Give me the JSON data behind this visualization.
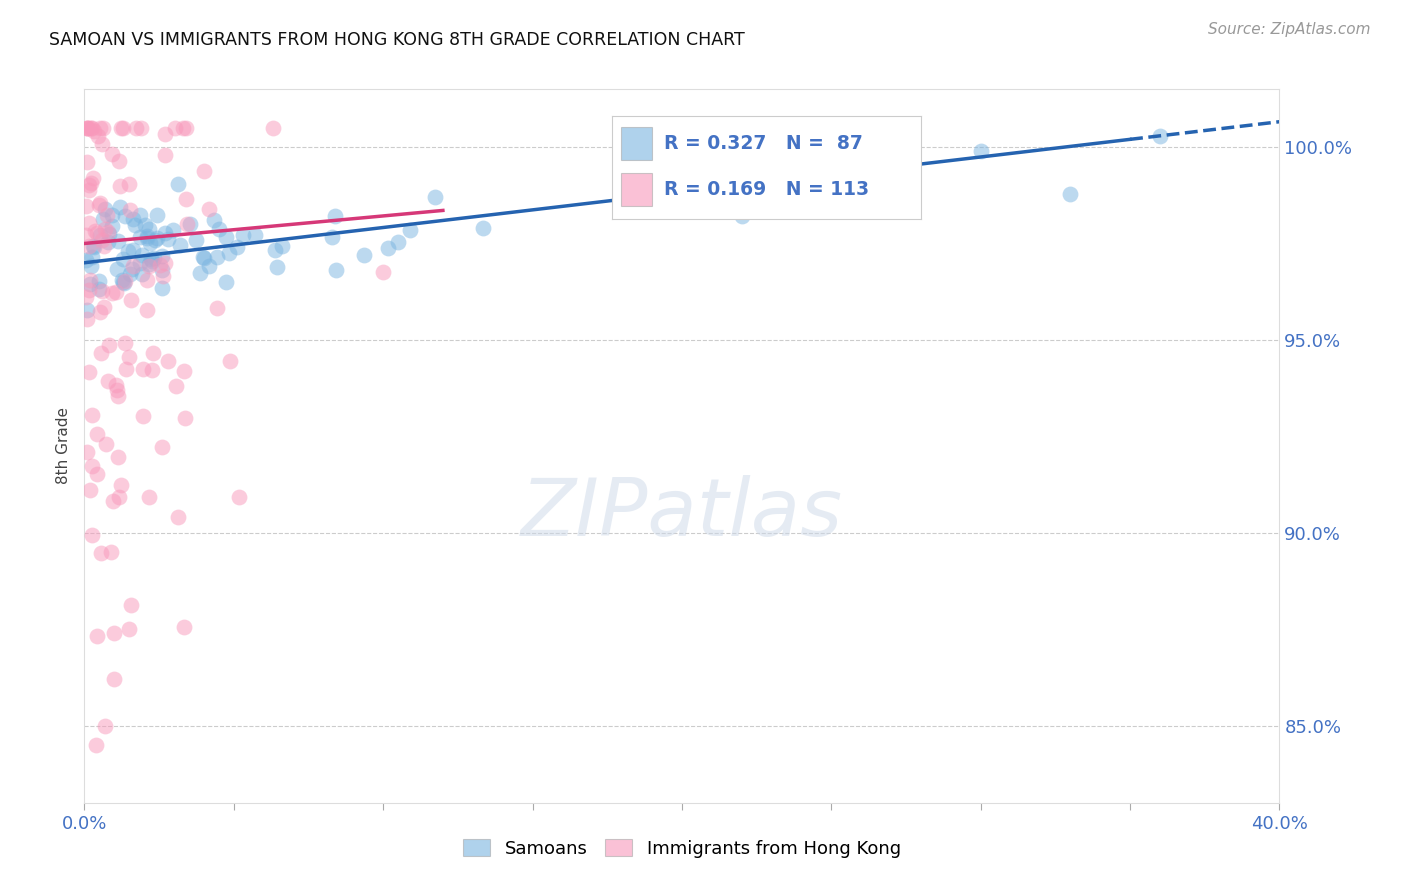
{
  "title": "SAMOAN VS IMMIGRANTS FROM HONG KONG 8TH GRADE CORRELATION CHART",
  "source_text": "Source: ZipAtlas.com",
  "ylabel": "8th Grade",
  "watermark": "ZIPatlas",
  "xlim": [
    0.0,
    40.0
  ],
  "ylim": [
    83.0,
    101.5
  ],
  "yticks": [
    85.0,
    90.0,
    95.0,
    100.0
  ],
  "samoans_label": "Samoans",
  "hk_label": "Immigrants from Hong Kong",
  "blue_color": "#7ab4e0",
  "pink_color": "#f899bb",
  "blue_line_color": "#2563b0",
  "pink_line_color": "#d63878",
  "title_color": "#111111",
  "axis_label_color": "#4472c4",
  "grid_color": "#cccccc",
  "background_color": "#ffffff",
  "R_blue": 0.327,
  "N_blue": 87,
  "R_pink": 0.169,
  "N_pink": 113,
  "legend_R_blue": "R = 0.327",
  "legend_N_blue": "N =  87",
  "legend_R_pink": "R = 0.169",
  "legend_N_pink": "N = 113"
}
